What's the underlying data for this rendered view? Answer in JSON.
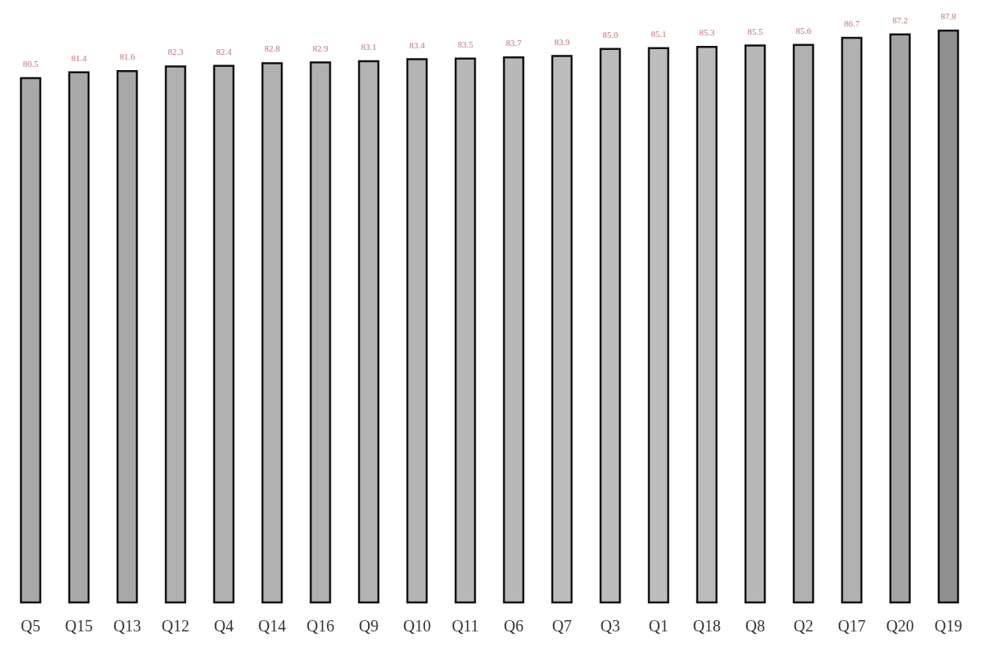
{
  "chart_data": {
    "type": "bar",
    "categories": [
      "Q5",
      "Q15",
      "Q13",
      "Q12",
      "Q4",
      "Q14",
      "Q16",
      "Q9",
      "Q10",
      "Q11",
      "Q6",
      "Q7",
      "Q3",
      "Q1",
      "Q18",
      "Q8",
      "Q2",
      "Q17",
      "Q20",
      "Q19"
    ],
    "values": [
      80.5,
      81.4,
      81.6,
      82.3,
      82.4,
      82.8,
      82.9,
      83.1,
      83.4,
      83.5,
      83.7,
      83.9,
      85.0,
      85.1,
      85.3,
      85.5,
      85.6,
      86.7,
      87.2,
      87.8
    ],
    "colors": [
      "#a8a8a8",
      "#a8a8a8",
      "#a8a8a8",
      "#b0b0b0",
      "#b0b0b0",
      "#b0b0b0",
      "#b0b0b0",
      "#b4b4b4",
      "#b4b4b4",
      "#b8b8b8",
      "#b8b8b8",
      "#bcbcbc",
      "#bcbcbc",
      "#bcbcbc",
      "#bcbcbc",
      "#b8b8b8",
      "#b0b0b0",
      "#b0b0b0",
      "#a4a4a4",
      "#909090"
    ],
    "value_labels": [
      "80.5",
      "81.4",
      "81.6",
      "82.3",
      "82.4",
      "82.8",
      "82.9",
      "83.1",
      "83.4",
      "83.5",
      "83.7",
      "83.9",
      "85.0",
      "85.1",
      "85.3",
      "85.5",
      "85.6",
      "86.7",
      "87.2",
      "87.8"
    ],
    "grid": false,
    "legend": false
  }
}
